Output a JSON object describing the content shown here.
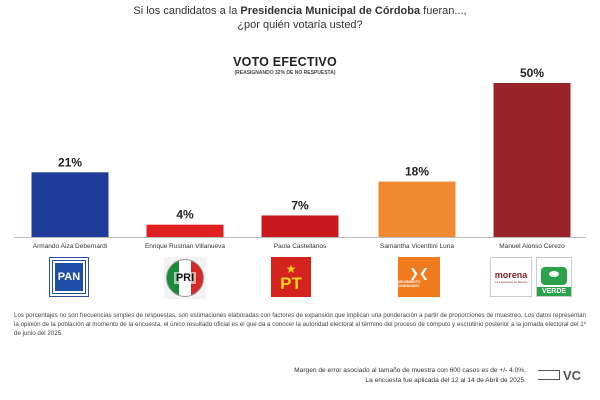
{
  "question": {
    "prefix": "Si los candidatos a la ",
    "bold": "Presidencia Municipal de Córdoba",
    "suffix": " fueran...,",
    "line2": "¿por quién votaría usted?"
  },
  "chart_data": {
    "type": "bar",
    "title": "VOTO EFECTIVO",
    "subtitle": "(REASIGNANDO 32% DE NO RESPUESTA)",
    "xlabel": "",
    "ylabel": "",
    "ylim": [
      0,
      50
    ],
    "grid": false,
    "legend": "none",
    "categories": [
      "Armando Aiza Debernardi",
      "Enrique Rustrian Villanueva",
      "Paola Castellanos",
      "Samantha Vicenttini Luna",
      "Manuel Alonso Cerezo"
    ],
    "values": [
      21,
      4,
      7,
      18,
      50
    ],
    "labels": [
      "21%",
      "4%",
      "7%",
      "18%",
      "50%"
    ],
    "colors": [
      "#1f3b9a",
      "#e02020",
      "#c8181c",
      "#f08a32",
      "#982328"
    ]
  },
  "logos": {
    "pan": {
      "text": "PAN",
      "icon": "pan-logo-icon"
    },
    "pri": {
      "text": "PRI",
      "icon": "pri-logo-icon"
    },
    "pt": {
      "text": "PT",
      "star": "★",
      "icon": "pt-logo-icon"
    },
    "mc": {
      "bird": "❯❮",
      "text": "MOVIMIENTO CIUDADANO",
      "icon": "mc-logo-icon"
    },
    "morena": {
      "text": "morena",
      "sub": "La esperanza de México",
      "icon": "morena-logo-icon"
    },
    "verde": {
      "text": "VERDE",
      "icon": "verde-logo-icon"
    }
  },
  "notes": {
    "methodology": "Los porcentajes no son frecuencias simples de respuestas, son estimaciones elaboradas con factores de expansión que implican una ponderación a partir de proporciones de muestreo. Los datos representan la opinión de la población al momento de la encuesta, el único resultado oficial es el que da a conocer la autoridad electoral al término del proceso de cómputo y escrutinio posterior a la jornada electoral del 1º de junio del 2025.",
    "margin": "Margen de error asociado al tamaño de muestra con 600 casos es de +/- 4.0%.",
    "dates": "La encuesta fue aplicada del 12 al 14 de Abril de 2025."
  },
  "brand": {
    "text": "VC"
  }
}
